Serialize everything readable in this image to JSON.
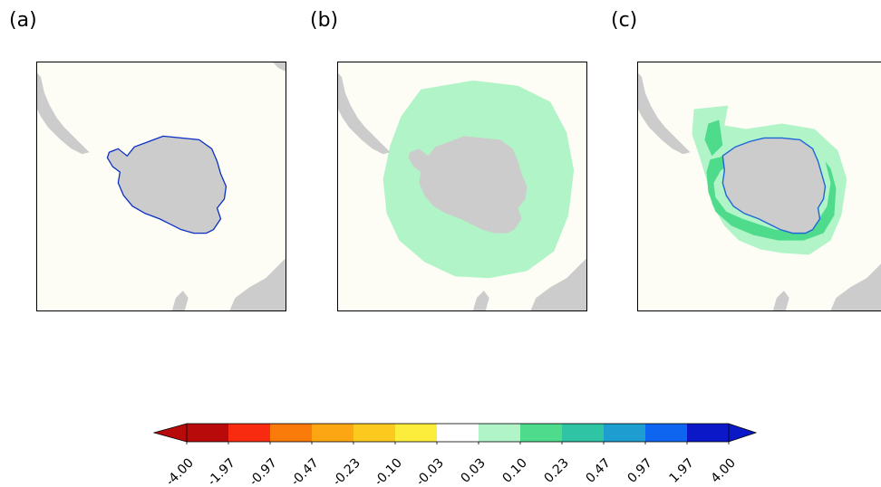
{
  "panels": [
    {
      "label": "(a)"
    },
    {
      "label": "(b)"
    },
    {
      "label": "(c)"
    }
  ],
  "colors": {
    "ocean": "#fdfdf6",
    "land": "#cccccc",
    "coast_a": "#0a2fc4",
    "light_green": "#b0f4c8"
  },
  "colorbar": {
    "tick_labels": [
      "-4.00",
      "-1.97",
      "-0.97",
      "-0.47",
      "-0.23",
      "-0.10",
      "-0.03",
      "0.03",
      "0.10",
      "0.23",
      "0.47",
      "0.97",
      "1.97",
      "4.00"
    ],
    "colors": [
      "#b80a0a",
      "#f82a10",
      "#fa7a0a",
      "#fca614",
      "#fcca1e",
      "#fcec3c",
      "#ffffff",
      "#b0f4c8",
      "#4edc8c",
      "#2fc4a4",
      "#1e9ed0",
      "#0e66f0",
      "#0a18c8"
    ],
    "under_color": "#b80a0a",
    "over_color": "#0a18c8",
    "extend": "both"
  }
}
